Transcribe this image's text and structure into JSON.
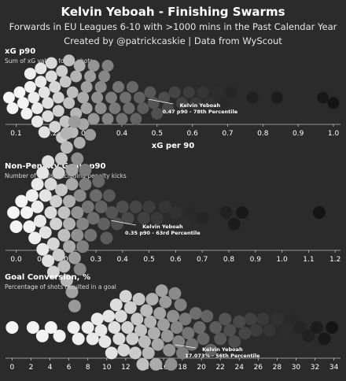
{
  "header": {
    "title": "Kelvin Yeboah - Finishing Swarms",
    "subtitle_1": "Forwards in EU Leagues 6-10 with >1000 mins in the Past Calendar Year",
    "subtitle_2": "Created by @patrickcaskie | Data from WyScout"
  },
  "chart_data": [
    {
      "type": "scatter",
      "title": "xG p90",
      "subtitle": "Sum of xG values for all shots",
      "xlabel": "xG per 90",
      "xlim": [
        0.07,
        1.02
      ],
      "ticks": [
        0.1,
        0.2,
        0.3,
        0.4,
        0.5,
        0.6,
        0.7,
        0.8,
        0.9,
        1.0
      ],
      "tick_labels": [
        "0.1",
        "0.2",
        "0.3",
        "0.4",
        "0.5",
        "0.6",
        "0.7",
        "0.8",
        "0.9",
        "1.0"
      ],
      "values": [
        0.08,
        0.09,
        0.11,
        0.12,
        0.13,
        0.14,
        0.14,
        0.15,
        0.16,
        0.16,
        0.17,
        0.17,
        0.18,
        0.18,
        0.19,
        0.19,
        0.2,
        0.2,
        0.21,
        0.21,
        0.22,
        0.22,
        0.23,
        0.23,
        0.24,
        0.24,
        0.25,
        0.25,
        0.26,
        0.26,
        0.27,
        0.27,
        0.28,
        0.28,
        0.29,
        0.29,
        0.3,
        0.3,
        0.31,
        0.31,
        0.32,
        0.32,
        0.33,
        0.34,
        0.34,
        0.35,
        0.36,
        0.36,
        0.37,
        0.38,
        0.39,
        0.4,
        0.41,
        0.42,
        0.43,
        0.44,
        0.45,
        0.46,
        0.48,
        0.49,
        0.5,
        0.52,
        0.53,
        0.55,
        0.57,
        0.59,
        0.61,
        0.63,
        0.65,
        0.67,
        0.69,
        0.71,
        0.77,
        0.84,
        0.97,
        1.0
      ],
      "highlight": {
        "value": 0.47,
        "label_1": "Kelvin Yeboah",
        "label_2": "0.47 p90 - 78th Percentile"
      }
    },
    {
      "type": "scatter",
      "title": "Non-Penalty Goals p90",
      "subtitle": "Number of goals, excluding penalty kicks",
      "xlabel": "",
      "xlim": [
        -0.04,
        1.22
      ],
      "ticks": [
        0.0,
        0.1,
        0.2,
        0.3,
        0.4,
        0.5,
        0.6,
        0.7,
        0.8,
        0.9,
        1.0,
        1.1,
        1.2
      ],
      "tick_labels": [
        "0.0",
        "0.1",
        "0.2",
        "0.3",
        "0.4",
        "0.5",
        "0.6",
        "0.7",
        "0.8",
        "0.9",
        "1.0",
        "1.1",
        "1.2"
      ],
      "values": [
        -0.01,
        0.0,
        0.02,
        0.04,
        0.05,
        0.06,
        0.07,
        0.08,
        0.08,
        0.09,
        0.1,
        0.1,
        0.11,
        0.11,
        0.12,
        0.12,
        0.13,
        0.13,
        0.14,
        0.14,
        0.15,
        0.15,
        0.16,
        0.16,
        0.17,
        0.17,
        0.18,
        0.18,
        0.18,
        0.19,
        0.19,
        0.19,
        0.2,
        0.2,
        0.2,
        0.21,
        0.21,
        0.21,
        0.22,
        0.22,
        0.22,
        0.23,
        0.23,
        0.23,
        0.24,
        0.24,
        0.25,
        0.25,
        0.26,
        0.26,
        0.27,
        0.28,
        0.29,
        0.3,
        0.31,
        0.32,
        0.33,
        0.34,
        0.35,
        0.36,
        0.38,
        0.4,
        0.42,
        0.45,
        0.48,
        0.5,
        0.53,
        0.56,
        0.6,
        0.63,
        0.66,
        0.7,
        0.79,
        0.82,
        0.85,
        1.14
      ],
      "highlight": {
        "value": 0.35,
        "label_1": "Kelvin Yeboah",
        "label_2": "0.35 p90 - 63rd Percentile"
      }
    },
    {
      "type": "scatter",
      "title": "Goal Conversion, %",
      "subtitle": "Percentage of shots resulted in a goal",
      "xlabel": "",
      "xlim": [
        -0.7,
        34.7
      ],
      "ticks": [
        0,
        2,
        4,
        6,
        8,
        10,
        12,
        14,
        16,
        18,
        20,
        22,
        24,
        26,
        28,
        30,
        32,
        34
      ],
      "tick_labels": [
        "0",
        "2",
        "4",
        "6",
        "8",
        "10",
        "12",
        "14",
        "16",
        "18",
        "20",
        "22",
        "24",
        "26",
        "28",
        "30",
        "32",
        "34"
      ],
      "values": [
        0.0,
        2.2,
        3.2,
        4.1,
        5.0,
        6.5,
        7.0,
        8.0,
        8.5,
        9.0,
        9.4,
        9.8,
        10.2,
        10.5,
        10.8,
        11.0,
        11.3,
        11.5,
        11.8,
        12.0,
        12.2,
        12.5,
        12.7,
        13.0,
        13.2,
        13.4,
        13.6,
        13.8,
        14.0,
        14.2,
        14.4,
        14.6,
        14.8,
        15.0,
        15.2,
        15.4,
        15.6,
        15.8,
        16.0,
        16.2,
        16.4,
        16.6,
        16.8,
        17.0,
        17.2,
        17.4,
        17.6,
        17.8,
        18.0,
        18.3,
        18.6,
        19.0,
        19.4,
        19.8,
        20.2,
        20.6,
        21.0,
        21.5,
        22.0,
        22.5,
        23.0,
        23.5,
        24.0,
        24.6,
        25.2,
        25.8,
        26.5,
        27.2,
        28.0,
        28.8,
        29.5,
        30.4,
        31.3,
        32.2,
        33.0,
        33.8
      ],
      "highlight": {
        "value": 17.073,
        "label_1": "Kelvin Yeboah",
        "label_2": "17.073% - 56th Percentile"
      }
    }
  ]
}
